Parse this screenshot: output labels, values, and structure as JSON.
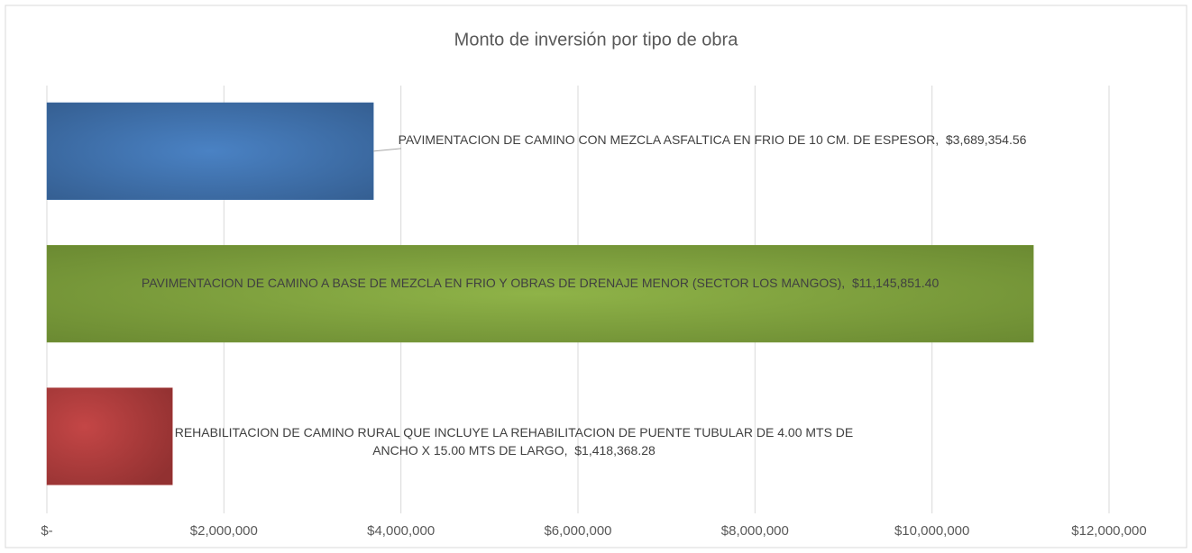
{
  "chart_data": {
    "type": "bar",
    "orientation": "horizontal",
    "title": "Monto de inversión por tipo de obra",
    "categories": [
      "PAVIMENTACION DE CAMINO CON MEZCLA ASFALTICA EN FRIO DE 10 CM. DE ESPESOR",
      "PAVIMENTACION DE CAMINO A BASE DE MEZCLA EN FRIO Y OBRAS DE DRENAJE MENOR (SECTOR LOS MANGOS)",
      "REHABILITACION DE CAMINO RURAL QUE INCLUYE LA REHABILITACION DE PUENTE TUBULAR DE 4.00 MTS DE ANCHO X 15.00 MTS DE LARGO"
    ],
    "values": [
      3689354.56,
      11145851.4,
      1418368.28
    ],
    "value_labels": [
      "$3,689,354.56",
      "$11,145,851.40",
      "$1,418,368.28"
    ],
    "colors": [
      "#3d6fa8",
      "#7b9b3b",
      "#a83b3b"
    ],
    "xlim": [
      0,
      12000000
    ],
    "xticks": [
      {
        "value": 0,
        "label": "$-"
      },
      {
        "value": 2000000,
        "label": "$2,000,000"
      },
      {
        "value": 4000000,
        "label": "$4,000,000"
      },
      {
        "value": 6000000,
        "label": "$6,000,000"
      },
      {
        "value": 8000000,
        "label": "$8,000,000"
      },
      {
        "value": 10000000,
        "label": "$10,000,000"
      },
      {
        "value": 12000000,
        "label": "$12,000,000"
      }
    ],
    "grid": true
  }
}
